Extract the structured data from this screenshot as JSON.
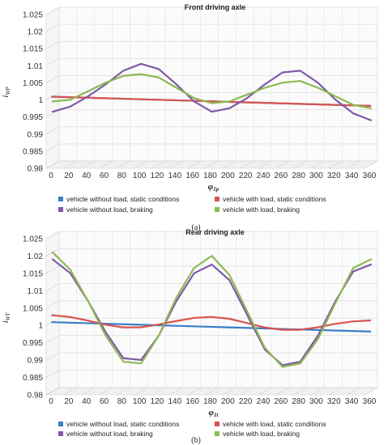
{
  "chart_data": [
    {
      "type": "line",
      "title": "Front driving axle",
      "ylabel_main": "i",
      "ylabel_sub": "WP",
      "xlabel_main": "φ",
      "xlabel_sub": "1p",
      "caption": "(a)",
      "xlim": [
        0,
        360
      ],
      "ylim": [
        0.98,
        1.025
      ],
      "x_ticks": [
        "0",
        "20",
        "40",
        "60",
        "80",
        "100",
        "120",
        "140",
        "160",
        "180",
        "200",
        "220",
        "240",
        "260",
        "280",
        "300",
        "320",
        "340",
        "360"
      ],
      "y_ticks": [
        "0.98",
        "0.985",
        "0.99",
        "0.995",
        "1",
        "1.005",
        "1.01",
        "1.015",
        "1.02",
        "1.025"
      ],
      "grid": true,
      "legend_position": "bottom",
      "x": [
        0,
        20,
        40,
        60,
        80,
        100,
        120,
        140,
        160,
        180,
        200,
        220,
        240,
        260,
        280,
        300,
        320,
        340,
        360
      ],
      "series": [
        {
          "name": "vehicle without load, static conditions",
          "color": "#3a7dc9",
          "values": [
            1.0,
            0.99985,
            0.9997,
            0.99955,
            0.9994,
            0.99925,
            0.9991,
            0.99895,
            0.9988,
            0.99865,
            0.9985,
            0.99835,
            0.9982,
            0.99805,
            0.9979,
            0.99775,
            0.9976,
            0.99745,
            0.9973
          ]
        },
        {
          "name": "vehicle with load, static conditions",
          "color": "#d9534f",
          "values": [
            1.0,
            0.99985,
            0.9997,
            0.99955,
            0.9994,
            0.99925,
            0.9991,
            0.99895,
            0.9988,
            0.99865,
            0.9985,
            0.99835,
            0.9982,
            0.99805,
            0.9979,
            0.99775,
            0.9976,
            0.99745,
            0.9973
          ]
        },
        {
          "name": "vehicle without load, braking",
          "color": "#7f5aa6",
          "values": [
            0.9955,
            0.997,
            1.0,
            1.0035,
            1.0075,
            1.0095,
            1.008,
            1.0035,
            0.9985,
            0.9955,
            0.9965,
            0.9995,
            1.0035,
            1.007,
            1.0075,
            1.004,
            0.999,
            0.995,
            0.993
          ]
        },
        {
          "name": "vehicle with load, braking",
          "color": "#8db953",
          "values": [
            0.9985,
            0.999,
            1.0015,
            1.004,
            1.006,
            1.0065,
            1.0055,
            1.0025,
            0.9995,
            0.998,
            0.9985,
            1.0005,
            1.0025,
            1.004,
            1.0045,
            1.0025,
            1.0,
            0.9975,
            0.9965
          ]
        }
      ]
    },
    {
      "type": "line",
      "title": "Rear driving axle",
      "ylabel_main": "i",
      "ylabel_sub": "WT",
      "xlabel_main": "φ",
      "xlabel_sub": "1t",
      "caption": "(b)",
      "xlim": [
        0,
        360
      ],
      "ylim": [
        0.98,
        1.025
      ],
      "x_ticks": [
        "0",
        "20",
        "40",
        "60",
        "80",
        "100",
        "120",
        "140",
        "160",
        "180",
        "200",
        "220",
        "240",
        "260",
        "280",
        "300",
        "320",
        "340",
        "360"
      ],
      "y_ticks": [
        "0.98",
        "0.985",
        "0.99",
        "0.995",
        "1",
        "1.005",
        "1.01",
        "1.015",
        "1.02",
        "1.025"
      ],
      "grid": true,
      "legend_position": "bottom",
      "x": [
        0,
        20,
        40,
        60,
        80,
        100,
        120,
        140,
        160,
        180,
        200,
        220,
        240,
        260,
        280,
        300,
        320,
        340,
        360
      ],
      "series": [
        {
          "name": "vehicle without load, static conditions",
          "color": "#3a7dc9",
          "values": [
            1.0,
            0.99985,
            0.9997,
            0.99955,
            0.9994,
            0.99925,
            0.9991,
            0.99895,
            0.9988,
            0.99865,
            0.9985,
            0.99835,
            0.9982,
            0.99805,
            0.9979,
            0.99775,
            0.9976,
            0.99745,
            0.9973
          ]
        },
        {
          "name": "vehicle with load, static conditions",
          "color": "#d9534f",
          "values": [
            1.002,
            1.0015,
            1.0005,
            0.9993,
            0.9985,
            0.9985,
            0.9993,
            1.0003,
            1.0012,
            1.0015,
            1.001,
            0.9998,
            0.9985,
            0.9978,
            0.9978,
            0.9985,
            0.9995,
            1.0002,
            1.0005
          ]
        },
        {
          "name": "vehicle without load, braking",
          "color": "#7f5aa6",
          "values": [
            1.018,
            1.014,
            1.006,
            0.997,
            0.9895,
            0.989,
            0.996,
            1.006,
            1.014,
            1.0165,
            1.012,
            1.002,
            0.992,
            0.9875,
            0.9885,
            0.996,
            1.006,
            1.0145,
            1.0165
          ]
        },
        {
          "name": "vehicle with load, braking",
          "color": "#8db953",
          "values": [
            1.02,
            1.015,
            1.006,
            0.996,
            0.9885,
            0.988,
            0.996,
            1.007,
            1.0155,
            1.019,
            1.0135,
            1.003,
            0.9925,
            0.987,
            0.988,
            0.995,
            1.0055,
            1.0155,
            1.018
          ]
        }
      ]
    }
  ]
}
